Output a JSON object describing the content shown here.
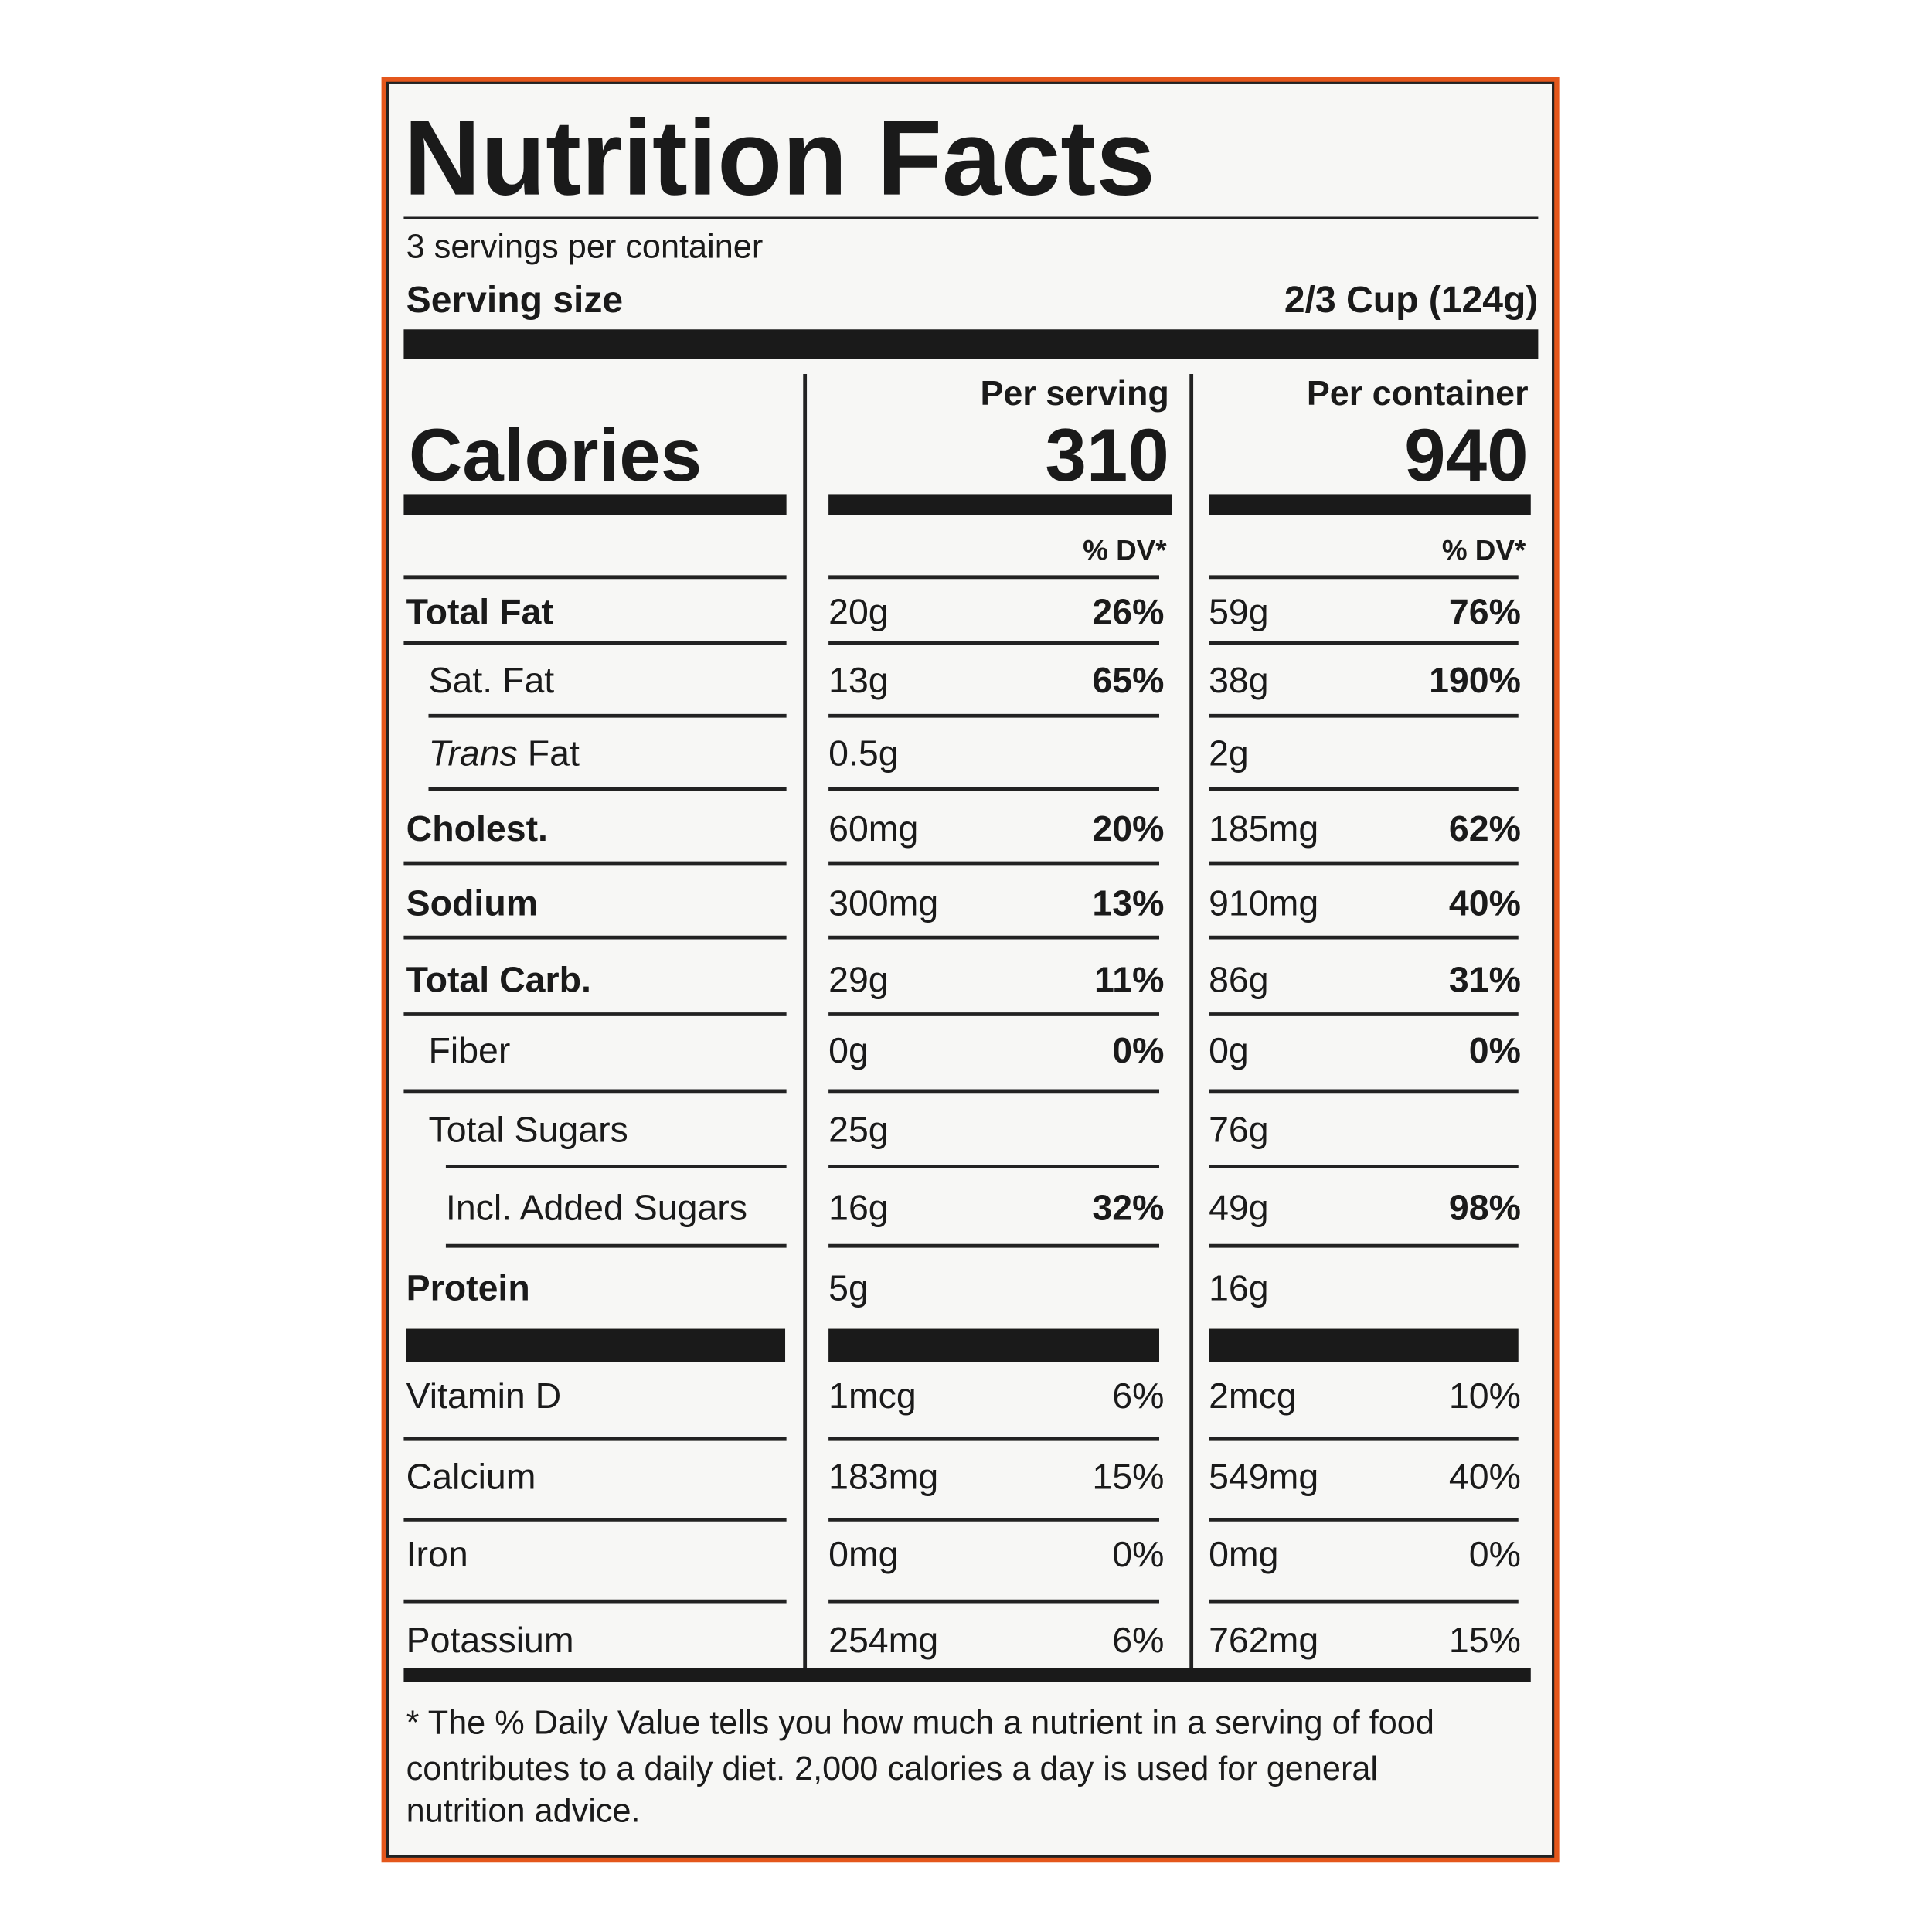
{
  "title": "Nutrition Facts",
  "servings": "3 servings per container",
  "serving_size": {
    "label": "Serving size",
    "value": "2/3 Cup (124g)"
  },
  "calories": {
    "label": "Calories"
  },
  "columns": [
    {
      "header": "Per serving",
      "calories": "310",
      "dv_header": "% DV*"
    },
    {
      "header": "Per container",
      "calories": "940",
      "dv_header": "% DV*"
    }
  ],
  "rows": [
    {
      "label": "Total Fat",
      "bold": true,
      "indent": 0,
      "cells": [
        {
          "amount": "20g",
          "dv": "26%"
        },
        {
          "amount": "59g",
          "dv": "76%"
        }
      ]
    },
    {
      "label": "Sat. Fat",
      "bold": false,
      "indent": 1,
      "cells": [
        {
          "amount": "13g",
          "dv": "65%"
        },
        {
          "amount": "38g",
          "dv": "190%"
        }
      ]
    },
    {
      "label_italic": "Trans",
      "label": "Fat",
      "bold": false,
      "indent": 1,
      "cells": [
        {
          "amount": "0.5g"
        },
        {
          "amount": "2g"
        }
      ]
    },
    {
      "label": "Cholest.",
      "bold": true,
      "indent": 0,
      "cells": [
        {
          "amount": "60mg",
          "dv": "20%"
        },
        {
          "amount": "185mg",
          "dv": "62%"
        }
      ]
    },
    {
      "label": "Sodium",
      "bold": true,
      "indent": 0,
      "cells": [
        {
          "amount": "300mg",
          "dv": "13%"
        },
        {
          "amount": "910mg",
          "dv": "40%"
        }
      ]
    },
    {
      "label": "Total Carb.",
      "bold": true,
      "indent": 0,
      "cells": [
        {
          "amount": "29g",
          "dv": "11%"
        },
        {
          "amount": "86g",
          "dv": "31%"
        }
      ]
    },
    {
      "label": "Fiber",
      "bold": false,
      "indent": 1,
      "cells": [
        {
          "amount": "0g",
          "dv": "0%"
        },
        {
          "amount": "0g",
          "dv": "0%"
        }
      ]
    },
    {
      "label": "Total Sugars",
      "bold": false,
      "indent": 1,
      "cells": [
        {
          "amount": "25g"
        },
        {
          "amount": "76g"
        }
      ]
    },
    {
      "label": "Incl. Added Sugars",
      "bold": false,
      "indent": 2,
      "cells": [
        {
          "amount": "16g",
          "dv": "32%"
        },
        {
          "amount": "49g",
          "dv": "98%"
        }
      ]
    },
    {
      "label": "Protein",
      "bold": true,
      "indent": 0,
      "cells": [
        {
          "amount": "5g"
        },
        {
          "amount": "16g"
        }
      ]
    },
    {
      "label": "Vitamin D",
      "bold": false,
      "indent": 0,
      "dv_bold": false,
      "cells": [
        {
          "amount": "1mcg",
          "dv": "6%"
        },
        {
          "amount": "2mcg",
          "dv": "10%"
        }
      ]
    },
    {
      "label": "Calcium",
      "bold": false,
      "indent": 0,
      "dv_bold": false,
      "cells": [
        {
          "amount": "183mg",
          "dv": "15%"
        },
        {
          "amount": "549mg",
          "dv": "40%"
        }
      ]
    },
    {
      "label": "Iron",
      "bold": false,
      "indent": 0,
      "dv_bold": false,
      "cells": [
        {
          "amount": "0mg",
          "dv": "0%"
        },
        {
          "amount": "0mg",
          "dv": "0%"
        }
      ]
    },
    {
      "label": "Potassium",
      "bold": false,
      "indent": 0,
      "dv_bold": false,
      "cells": [
        {
          "amount": "254mg",
          "dv": "6%"
        },
        {
          "amount": "762mg",
          "dv": "15%"
        }
      ]
    }
  ],
  "footnote": [
    "* The % Daily Value tells you how much a nutrient in a serving of food",
    "contributes to a daily diet. 2,000 calories a day is used for general",
    "nutrition advice."
  ]
}
